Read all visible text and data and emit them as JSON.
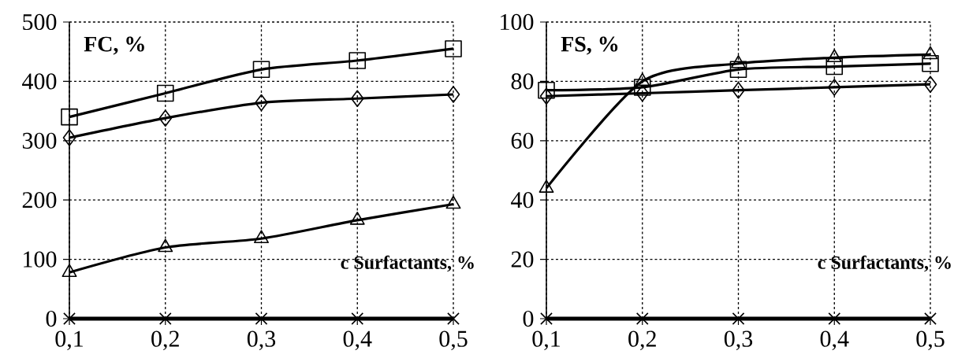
{
  "chart_data": [
    {
      "type": "line",
      "ylabel": "FC, %",
      "xlabel": "c Surfactants, %",
      "x": [
        0.1,
        0.2,
        0.3,
        0.4,
        0.5
      ],
      "series": [
        {
          "color": "#000000",
          "marker": "square",
          "values": [
            340,
            380,
            420,
            435,
            455
          ]
        },
        {
          "color": "#000000",
          "marker": "diamond",
          "values": [
            305,
            338,
            364,
            371,
            378
          ]
        },
        {
          "color": "#000000",
          "marker": "triangle",
          "values": [
            78,
            120,
            135,
            166,
            193
          ]
        },
        {
          "color": "#000000",
          "marker": "cross",
          "values": [
            0,
            0,
            0,
            0,
            0
          ]
        }
      ],
      "xlim": [
        0.1,
        0.5
      ],
      "xticks": [
        {
          "value": 0.1,
          "label": "0,1"
        },
        {
          "value": 0.2,
          "label": "0,2"
        },
        {
          "value": 0.3,
          "label": "0,3"
        },
        {
          "value": 0.4,
          "label": "0,4"
        },
        {
          "value": 0.5,
          "label": "0,5"
        }
      ],
      "ylim": [
        0,
        500
      ],
      "yticks": [
        0,
        100,
        200,
        300,
        400,
        500
      ],
      "grid": true,
      "line_style": "solid"
    },
    {
      "type": "line",
      "ylabel": "FS, %",
      "xlabel": "c Surfactants, %",
      "x": [
        0.1,
        0.2,
        0.3,
        0.4,
        0.5
      ],
      "series": [
        {
          "color": "#000000",
          "marker": "square",
          "values": [
            77,
            78,
            84,
            85,
            86
          ]
        },
        {
          "color": "#000000",
          "marker": "diamond",
          "values": [
            75,
            76,
            77,
            78,
            79
          ]
        },
        {
          "color": "#000000",
          "marker": "triangle",
          "values": [
            44,
            80,
            86,
            88,
            89
          ]
        },
        {
          "color": "#000000",
          "marker": "cross",
          "values": [
            0,
            0,
            0,
            0,
            0
          ]
        }
      ],
      "xlim": [
        0.1,
        0.5
      ],
      "xticks": [
        {
          "value": 0.1,
          "label": "0,1"
        },
        {
          "value": 0.2,
          "label": "0,2"
        },
        {
          "value": 0.3,
          "label": "0,3"
        },
        {
          "value": 0.4,
          "label": "0,4"
        },
        {
          "value": 0.5,
          "label": "0,5"
        }
      ],
      "ylim": [
        0,
        100
      ],
      "yticks": [
        0,
        20,
        40,
        60,
        80,
        100
      ],
      "grid": true,
      "line_style": "solid"
    }
  ]
}
